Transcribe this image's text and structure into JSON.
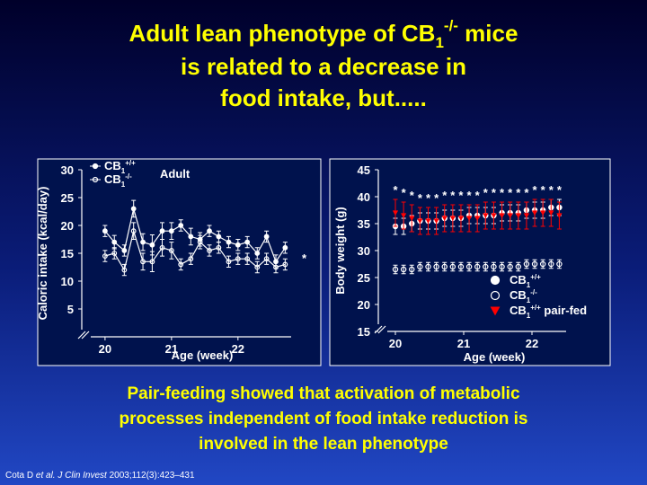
{
  "title_lines": [
    {
      "text": "Adult lean phenotype of CB",
      "sub": "1",
      "sup": "-/-",
      "after": " mice"
    },
    {
      "text": "is related to a decrease in"
    },
    {
      "text": "food intake, but....."
    }
  ],
  "caption_lines": [
    "Pair-feeding showed that activation of metabolic",
    "processes independent of food intake reduction is",
    "involved in the lean phenotype"
  ],
  "citation": {
    "author": "Cota D",
    "etal": "et al.",
    "journal": "J Clin Invest",
    "ref": "2003;112(3):423–431"
  },
  "chart_data": [
    {
      "type": "line",
      "y_label": "Caloric intake (kcal/day)",
      "x_label": "Age (week)",
      "annotation": "Adult",
      "significance": "*",
      "x": [
        20,
        20.14,
        20.29,
        20.43,
        20.57,
        20.71,
        20.86,
        21,
        21.14,
        21.29,
        21.43,
        21.57,
        21.71,
        21.86,
        22,
        22.14,
        22.29,
        22.43,
        22.57,
        22.71
      ],
      "xlim": [
        19.65,
        22.8
      ],
      "xticks": [
        20,
        21,
        22
      ],
      "ylim": [
        0,
        30
      ],
      "yticks": [
        5,
        10,
        15,
        20,
        25,
        30
      ],
      "series": [
        {
          "name": "CB",
          "name_sub": "1",
          "name_sup": "+/+",
          "color": "#ffffff",
          "marker": "circle",
          "values": [
            19,
            17,
            15.5,
            23,
            17,
            16.5,
            19,
            19,
            20,
            18,
            17.5,
            19,
            18,
            17,
            16.5,
            17,
            15,
            18,
            13.5,
            16
          ],
          "errors": [
            1,
            1.2,
            1,
            1.5,
            1.5,
            1.8,
            1.5,
            1.5,
            1,
            1.5,
            1.2,
            1,
            1,
            1,
            1,
            1,
            1,
            1,
            1.2,
            1
          ]
        },
        {
          "name": "CB",
          "name_sub": "1",
          "name_sup": "-/-",
          "color": "#ffffff",
          "marker": "open-circle",
          "values": [
            14.5,
            15,
            12,
            19,
            13.5,
            13.5,
            16,
            15.5,
            13,
            14,
            17,
            15.5,
            16,
            13.5,
            14,
            14,
            12.5,
            14,
            12.5,
            13
          ],
          "errors": [
            1,
            1,
            1,
            1.5,
            1.5,
            1.8,
            1.5,
            1.5,
            1,
            1,
            1.2,
            1,
            1,
            1,
            1,
            1,
            1,
            1,
            1,
            1
          ]
        }
      ]
    },
    {
      "type": "scatter",
      "y_label": "Body weight (g)",
      "x_label": "Age (week)",
      "significance": "*",
      "x": [
        20,
        20.12,
        20.24,
        20.36,
        20.48,
        20.6,
        20.72,
        20.84,
        20.96,
        21.08,
        21.2,
        21.32,
        21.44,
        21.56,
        21.68,
        21.8,
        21.92,
        22.04,
        22.16,
        22.28,
        22.4
      ],
      "xlim": [
        19.75,
        22.5
      ],
      "xticks": [
        20,
        21,
        22
      ],
      "ylim": [
        15,
        45
      ],
      "yticks": [
        15,
        20,
        25,
        30,
        35,
        40,
        45
      ],
      "series": [
        {
          "name": "CB",
          "name_sub": "1",
          "name_sup": "+/+",
          "color": "#ffffff",
          "marker": "circle",
          "values": [
            34.5,
            34.5,
            35,
            35.5,
            35.5,
            35.5,
            36,
            36,
            36,
            36.5,
            36.5,
            36.5,
            36.5,
            37,
            37,
            37,
            37.5,
            37.5,
            37.5,
            38,
            38
          ],
          "errors": [
            1.5,
            1.5,
            1.5,
            1.5,
            1.5,
            1.5,
            1.5,
            1.5,
            1.5,
            1.5,
            1.5,
            1.5,
            1.5,
            1.5,
            1.5,
            1.5,
            1.5,
            1.5,
            1.5,
            1.5,
            1.5
          ]
        },
        {
          "name": "CB",
          "name_sub": "1",
          "name_sup": "-/-",
          "color": "#ffffff",
          "marker": "open-circle",
          "values": [
            26.5,
            26.5,
            26.5,
            27,
            27,
            27,
            27,
            27,
            27,
            27,
            27,
            27,
            27,
            27,
            27,
            27,
            27.5,
            27.5,
            27.5,
            27.5,
            27.5
          ],
          "errors": [
            0.8,
            0.8,
            0.8,
            0.8,
            0.8,
            0.8,
            0.8,
            0.8,
            0.8,
            0.8,
            0.8,
            0.8,
            0.8,
            0.8,
            0.8,
            0.8,
            0.8,
            0.8,
            0.8,
            0.8,
            0.8
          ]
        },
        {
          "name": "CB",
          "name_sub": "1",
          "name_sup": "+/+",
          "name_suffix": " pair-fed",
          "color": "#ff0000",
          "marker": "triangle",
          "values": [
            37,
            36.5,
            36,
            35.5,
            35.5,
            35.5,
            36,
            36,
            36,
            36,
            36,
            36.5,
            36.5,
            36.5,
            36.5,
            36.5,
            36.5,
            37,
            37,
            37,
            36.5
          ],
          "errors": [
            2.5,
            2.5,
            2.5,
            2.5,
            2.5,
            2.5,
            2.5,
            2.5,
            2.5,
            2.5,
            2.5,
            2.5,
            2.5,
            2.5,
            2.5,
            2.5,
            2.5,
            2.5,
            2.5,
            2.5,
            2.5
          ]
        }
      ]
    }
  ]
}
